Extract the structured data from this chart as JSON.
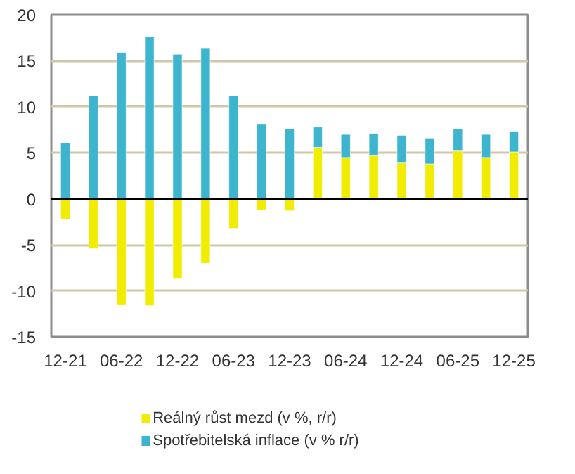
{
  "chart_data": {
    "type": "bar",
    "stacked": true,
    "categories": [
      "12-21",
      null,
      "06-22",
      null,
      "12-22",
      null,
      "06-23",
      null,
      "12-23",
      null,
      "06-24",
      null,
      "12-24",
      null,
      "06-25",
      null,
      "12-25"
    ],
    "series": [
      {
        "name": "Reálný růst mezd (v %, r/r)",
        "color": "#f2ed00",
        "values": [
          -2.2,
          -5.4,
          -11.5,
          -11.6,
          -8.7,
          -7.0,
          -3.2,
          -1.2,
          -1.3,
          5.6,
          4.5,
          4.7,
          3.9,
          3.8,
          5.2,
          4.5,
          5.1
        ]
      },
      {
        "name": "Spotřebitelská inflace (v % r/r)",
        "color": "#3db5cf",
        "values": [
          6.1,
          11.2,
          15.9,
          17.6,
          15.7,
          16.4,
          11.2,
          8.1,
          7.6,
          2.2,
          2.5,
          2.4,
          3.0,
          2.8,
          2.4,
          2.5,
          2.2
        ]
      }
    ],
    "ylim": [
      -15,
      20
    ],
    "yticks": [
      -15,
      -10,
      -5,
      0,
      5,
      10,
      15,
      20
    ],
    "grid": "y",
    "legend": "bottom"
  }
}
